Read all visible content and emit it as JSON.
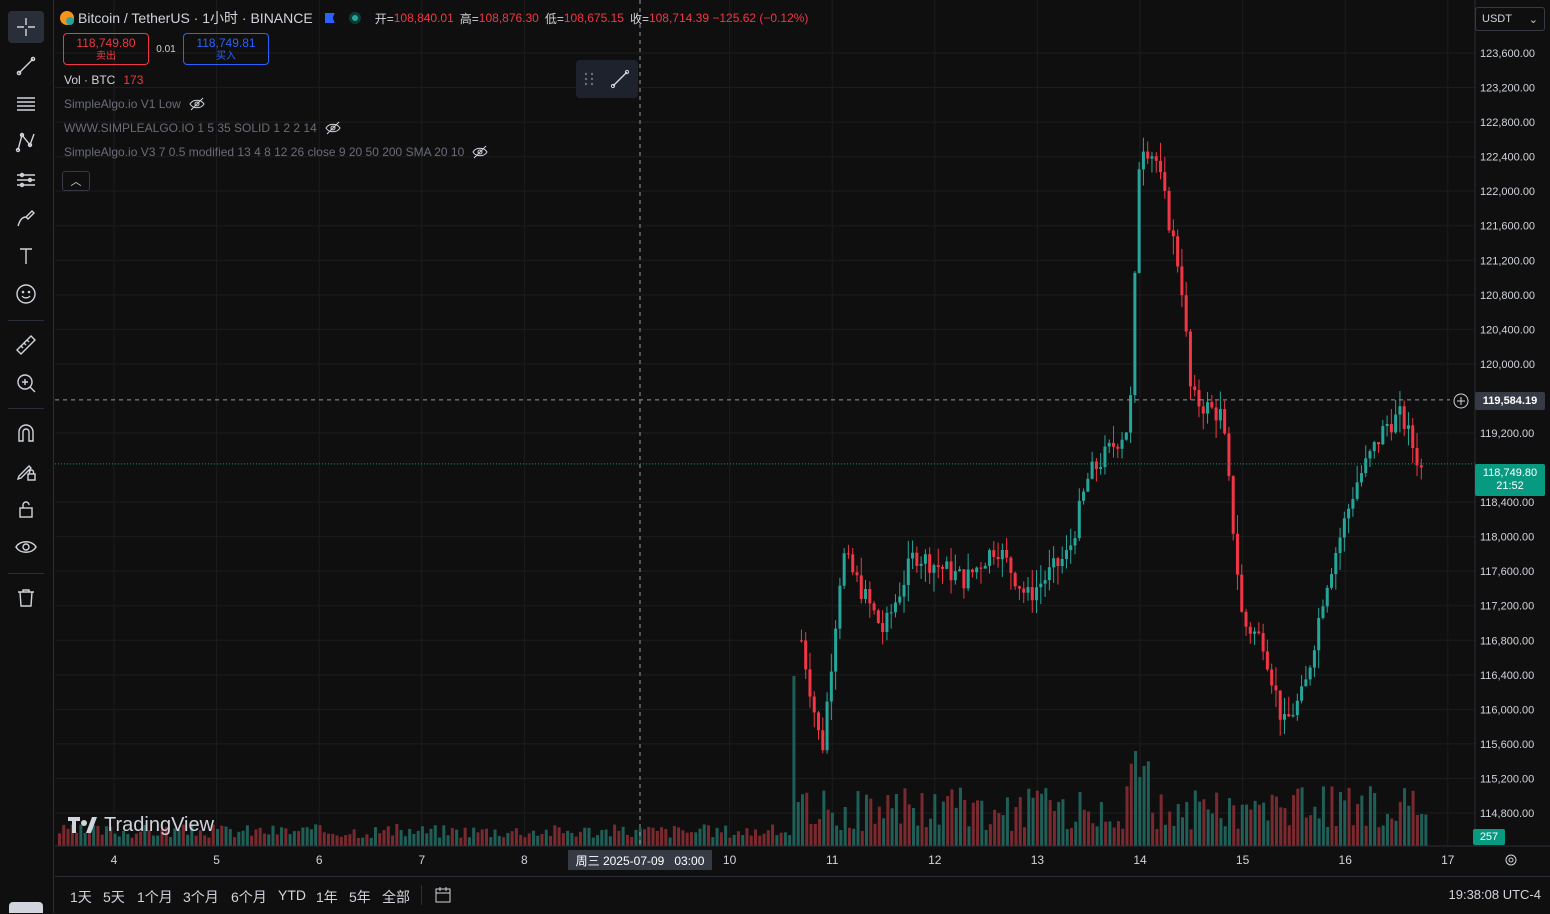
{
  "header": {
    "symbol_title": "Bitcoin / TetherUS · 1小时 · BINANCE",
    "ohlc": [
      {
        "k": "开=",
        "v": "108,840.01"
      },
      {
        "k": "高=",
        "v": "108,876.30"
      },
      {
        "k": "低=",
        "v": "108,675.15"
      },
      {
        "k": "收=",
        "v": "108,714.39 −125.62 (−0.12%)"
      }
    ]
  },
  "trade": {
    "sell_price": "118,749.80",
    "sell_label": "卖出",
    "spread": "0.01",
    "buy_price": "118,749.81",
    "buy_label": "买入"
  },
  "volume_legend": {
    "label": "Vol · BTC",
    "value": "173"
  },
  "indicators": [
    "SimpleAlgo.io V1 Low",
    "WWW.SIMPLEALGO.IO 1 5 35 SOLID 1 2 2 14",
    "SimpleAlgo.io V3 7 0.5 modified 13 4 8 12 26 close 9 20 50 200 SMA 20 10"
  ],
  "currency_select": "USDT",
  "price_axis_ticks": [
    "123,600.00",
    "123,200.00",
    "122,800.00",
    "122,400.00",
    "122,000.00",
    "121,600.00",
    "121,200.00",
    "120,800.00",
    "120,400.00",
    "120,000.00",
    "119,200.00",
    "118,400.00",
    "118,000.00",
    "117,600.00",
    "117,200.00",
    "116,800.00",
    "116,400.00",
    "116,000.00",
    "115,600.00",
    "115,200.00",
    "114,800.00"
  ],
  "crosshair_price": "119,584.19",
  "last_price": "118,749.80",
  "last_countdown": "21:52",
  "volume_badge": "257",
  "time_axis_ticks": [
    "4",
    "5",
    "6",
    "7",
    "8",
    "10",
    "11",
    "12",
    "13",
    "14",
    "15",
    "16",
    "17"
  ],
  "crosshair_time": "周三 2025-07-09   03:00",
  "logo_text": "TradingView",
  "ranges": [
    "1天",
    "5天",
    "1个月",
    "3个月",
    "6个月",
    "YTD",
    "1年",
    "5年",
    "全部"
  ],
  "clock": "19:38:08 UTC-4",
  "colors": {
    "up": "#26a69a",
    "down": "#f23645",
    "background": "#0f0f0f",
    "grid": "#1c1c1c"
  },
  "toolbar_icons": [
    "crosshair-icon",
    "trend-line-icon",
    "fib-icon",
    "pattern-icon",
    "prediction-icon",
    "brush-icon",
    "text-icon",
    "emoji-icon",
    "ruler-icon",
    "zoom-in-icon",
    "magnet-icon",
    "lock-drawing-icon",
    "lock-icon",
    "eye-icon",
    "trash-icon"
  ],
  "chart_data": {
    "type": "candlestick",
    "symbol": "BTCUSDT",
    "interval": "1h",
    "y_range": [
      114400,
      123800
    ],
    "x_tick_labels": [
      "4",
      "5",
      "6",
      "7",
      "8",
      "10",
      "11",
      "12",
      "13",
      "14",
      "15",
      "16",
      "17"
    ],
    "anchors": [
      {
        "day": 10.7,
        "price": 116800
      },
      {
        "day": 10.9,
        "price": 115500
      },
      {
        "day": 11.1,
        "price": 117800
      },
      {
        "day": 11.5,
        "price": 116900
      },
      {
        "day": 11.8,
        "price": 117800
      },
      {
        "day": 12.3,
        "price": 117500
      },
      {
        "day": 12.6,
        "price": 117900
      },
      {
        "day": 12.9,
        "price": 117300
      },
      {
        "day": 13.3,
        "price": 117800
      },
      {
        "day": 13.5,
        "price": 118700
      },
      {
        "day": 13.9,
        "price": 119300
      },
      {
        "day": 14.0,
        "price": 122600
      },
      {
        "day": 14.15,
        "price": 122400
      },
      {
        "day": 14.4,
        "price": 121000
      },
      {
        "day": 14.5,
        "price": 119600
      },
      {
        "day": 14.8,
        "price": 119400
      },
      {
        "day": 15.0,
        "price": 117000
      },
      {
        "day": 15.2,
        "price": 116800
      },
      {
        "day": 15.4,
        "price": 115800
      },
      {
        "day": 15.6,
        "price": 116200
      },
      {
        "day": 15.8,
        "price": 117400
      },
      {
        "day": 16.1,
        "price": 118600
      },
      {
        "day": 16.4,
        "price": 119300
      },
      {
        "day": 16.55,
        "price": 119400
      },
      {
        "day": 16.75,
        "price": 118750
      }
    ]
  }
}
